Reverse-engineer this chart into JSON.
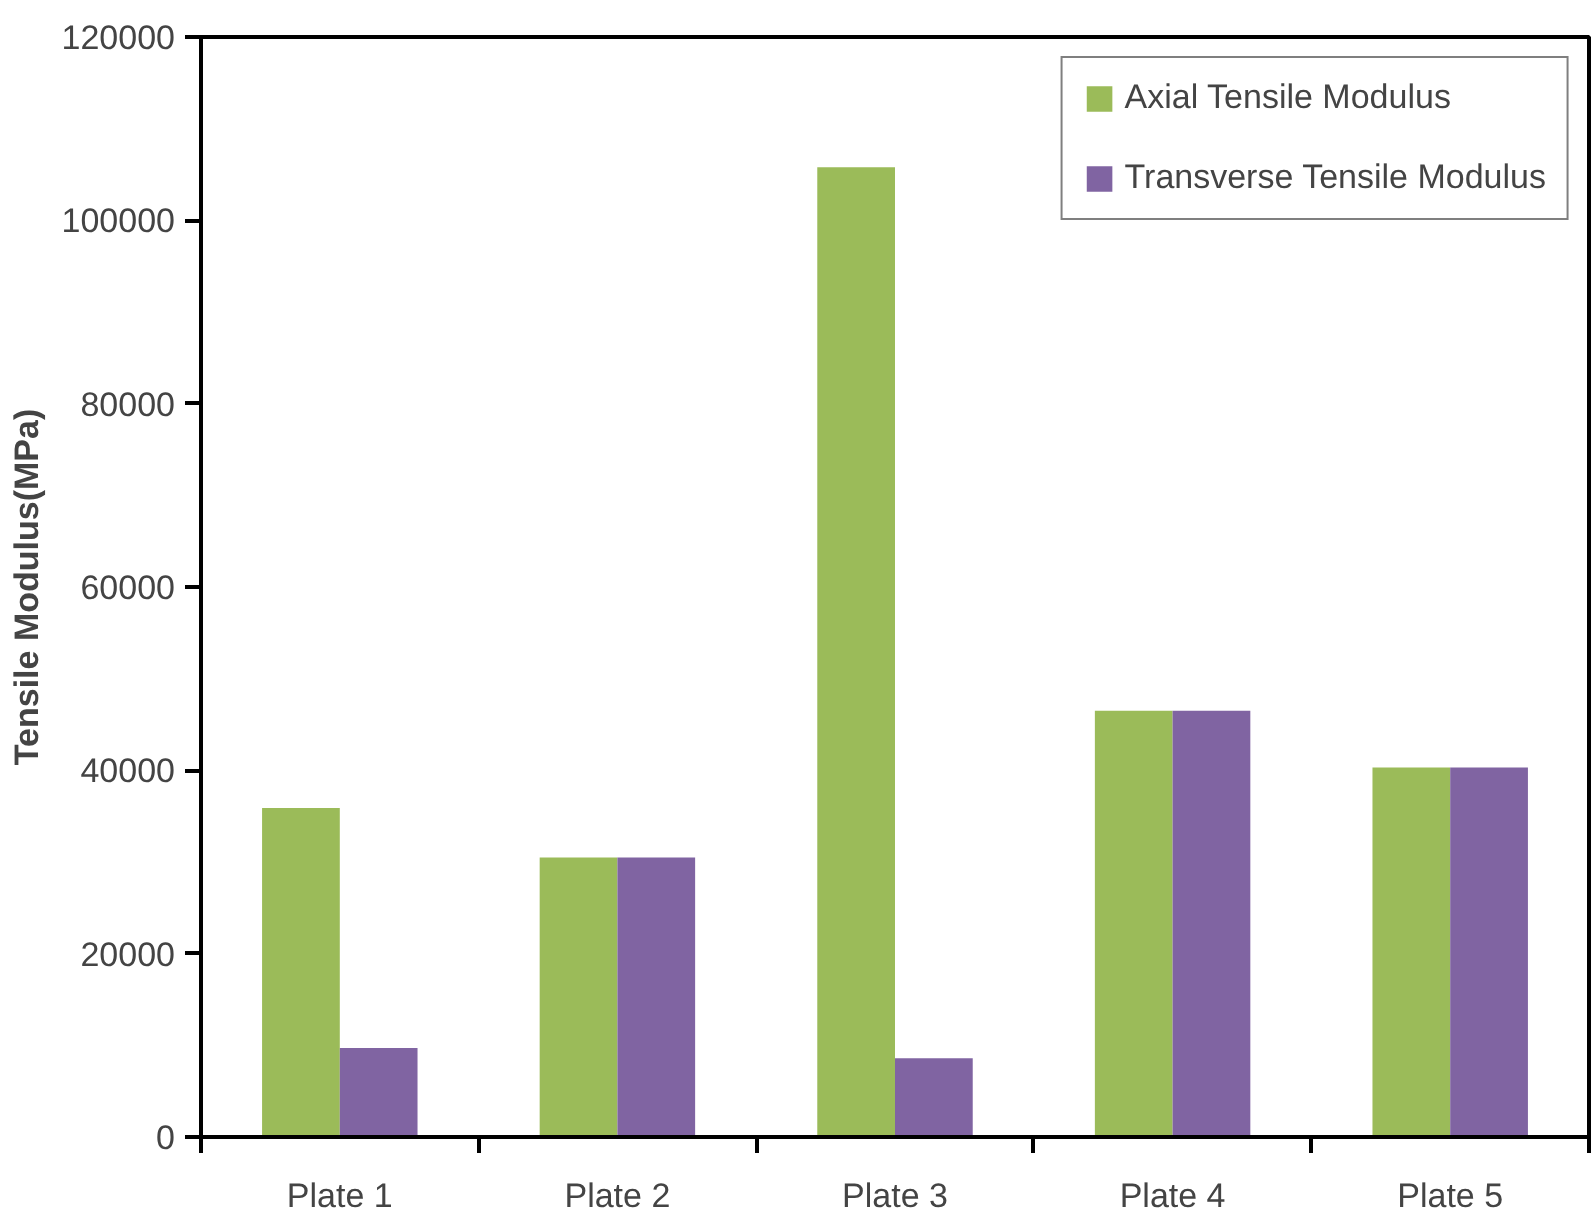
{
  "chart_data": {
    "type": "bar",
    "ylabel": "Tensile Modulus(MPa)",
    "categories": [
      "Plate 1",
      "Plate 2",
      "Plate 3",
      "Plate 4",
      "Plate 5"
    ],
    "series": [
      {
        "name": "Axial Tensile Modulus",
        "color": "#9bbb59",
        "values": [
          35900,
          30500,
          105800,
          46500,
          40300
        ]
      },
      {
        "name": "Transverse Tensile Modulus",
        "color": "#8064a2",
        "values": [
          9700,
          30500,
          8600,
          46500,
          40300
        ]
      }
    ],
    "ylim": [
      0,
      120000
    ],
    "yticks": [
      0,
      20000,
      40000,
      60000,
      80000,
      100000,
      120000
    ],
    "grid": false,
    "legend": "top right"
  }
}
